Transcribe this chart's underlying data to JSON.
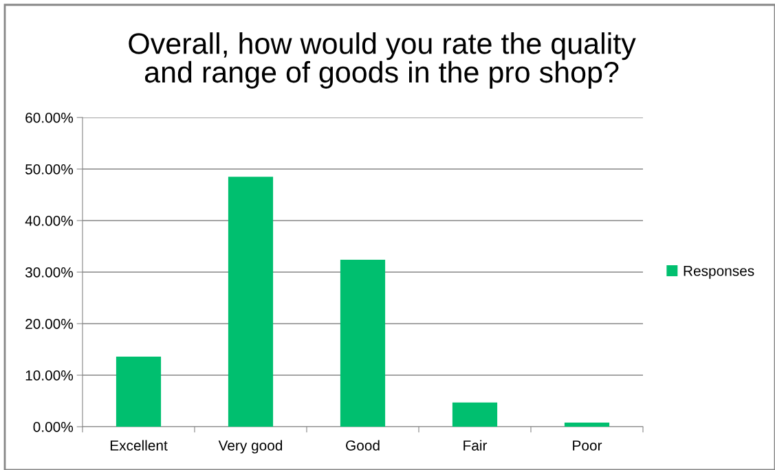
{
  "chart_data": {
    "type": "bar",
    "title": "Overall, how would you rate the quality\nand range of goods in the pro shop?",
    "categories": [
      "Excellent",
      "Very good",
      "Good",
      "Fair",
      "Poor"
    ],
    "series": [
      {
        "name": "Responses",
        "color": "#00bf6f",
        "values": [
          13.6,
          48.5,
          32.4,
          4.7,
          0.8
        ]
      }
    ],
    "ylim": [
      0,
      60
    ],
    "yticks": [
      {
        "value": 0,
        "label": "0.00%"
      },
      {
        "value": 10,
        "label": "10.00%"
      },
      {
        "value": 20,
        "label": "20.00%"
      },
      {
        "value": 30,
        "label": "30.00%"
      },
      {
        "value": 40,
        "label": "40.00%"
      },
      {
        "value": 50,
        "label": "50.00%"
      },
      {
        "value": 60,
        "label": "60.00%"
      }
    ],
    "grid": "y",
    "legend": "right"
  }
}
